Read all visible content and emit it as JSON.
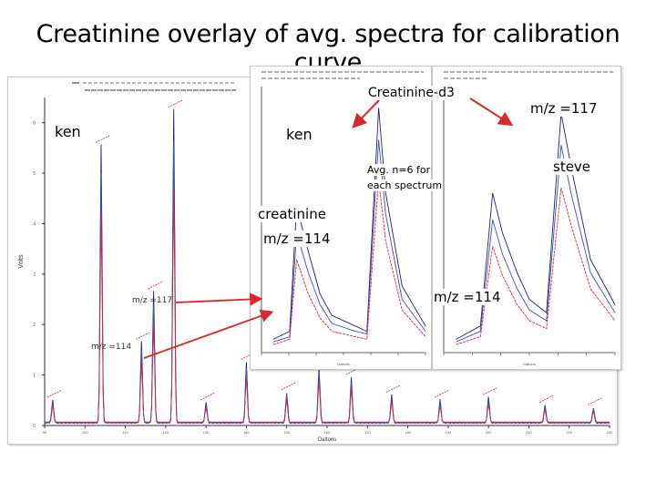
{
  "title": "Creatinine overlay of avg. spectra for calibration curve",
  "labels": {
    "creatinine_d3": "Creatinine-d3",
    "mz117_top": "m/z =117",
    "ken_left": "ken",
    "ken_right": "ken",
    "steve": "steve",
    "avg_line1": "Avg. n=6 for",
    "avg_line2": "each spectrum",
    "creatinine": "creatinine",
    "mz114_left": "m/z =114",
    "mz114_right": "m/z =114",
    "main_mz117": "m/z =117",
    "main_mz114": "m/z =114"
  },
  "colors": {
    "series_dark": "#22226a",
    "series_blue": "#3c4fb0",
    "series_red": "#c0304a",
    "arrow": "#d42a2a"
  },
  "chart_data": [
    {
      "type": "line",
      "title": "",
      "xlabel": "Daltons",
      "ylabel": "Volts",
      "xlim": [
        90,
        230
      ],
      "ylim": [
        0,
        6.5
      ],
      "x_ticks": [
        90,
        100,
        110,
        120,
        130,
        140,
        150,
        160,
        170,
        180,
        190,
        200,
        210,
        220,
        230
      ],
      "y_ticks": [
        0,
        1,
        2,
        3,
        4,
        5,
        6
      ],
      "grid": false,
      "legend_placement": "top",
      "peaks": [
        {
          "x": 92,
          "y": 0.45
        },
        {
          "x": 104,
          "y": 5.5
        },
        {
          "x": 114,
          "y": 1.6
        },
        {
          "x": 117,
          "y": 2.6
        },
        {
          "x": 122,
          "y": 6.2
        },
        {
          "x": 130,
          "y": 0.4
        },
        {
          "x": 140,
          "y": 1.2
        },
        {
          "x": 150,
          "y": 0.6
        },
        {
          "x": 158,
          "y": 1.1
        },
        {
          "x": 166,
          "y": 0.9
        },
        {
          "x": 176,
          "y": 0.55
        },
        {
          "x": 188,
          "y": 0.45
        },
        {
          "x": 200,
          "y": 0.5
        },
        {
          "x": 214,
          "y": 0.35
        },
        {
          "x": 226,
          "y": 0.3
        }
      ]
    },
    {
      "type": "line",
      "title": "",
      "xlabel": "Daltons",
      "ylabel": "",
      "xlim": [
        112,
        119
      ],
      "ylim": [
        0,
        1
      ],
      "grid": false,
      "legend_placement": "top",
      "series": [
        {
          "values": [
            [
              112.5,
              0.05
            ],
            [
              113.2,
              0.08
            ],
            [
              113.5,
              0.55
            ],
            [
              114,
              0.38
            ],
            [
              114.5,
              0.22
            ],
            [
              115,
              0.14
            ],
            [
              116,
              0.1
            ],
            [
              116.5,
              0.08
            ],
            [
              117,
              0.92
            ],
            [
              117.3,
              0.6
            ],
            [
              118,
              0.25
            ],
            [
              119,
              0.1
            ]
          ]
        },
        {
          "values": [
            [
              112.5,
              0.04
            ],
            [
              113.2,
              0.06
            ],
            [
              113.5,
              0.45
            ],
            [
              114,
              0.3
            ],
            [
              114.5,
              0.18
            ],
            [
              115,
              0.11
            ],
            [
              116,
              0.08
            ],
            [
              116.5,
              0.07
            ],
            [
              117,
              0.8
            ],
            [
              117.3,
              0.52
            ],
            [
              118,
              0.2
            ],
            [
              119,
              0.08
            ]
          ]
        },
        {
          "values": [
            [
              112.5,
              0.03
            ],
            [
              113.2,
              0.05
            ],
            [
              113.5,
              0.35
            ],
            [
              114,
              0.22
            ],
            [
              114.5,
              0.13
            ],
            [
              115,
              0.08
            ],
            [
              116,
              0.06
            ],
            [
              116.5,
              0.05
            ],
            [
              117,
              0.65
            ],
            [
              117.3,
              0.42
            ],
            [
              118,
              0.16
            ],
            [
              119,
              0.06
            ]
          ]
        }
      ]
    },
    {
      "type": "line",
      "title": "",
      "xlabel": "Daltons",
      "ylabel": "",
      "xlim": [
        112,
        119
      ],
      "ylim": [
        0,
        1
      ],
      "grid": false,
      "legend_placement": "top",
      "series": [
        {
          "values": [
            [
              112.5,
              0.05
            ],
            [
              113.5,
              0.1
            ],
            [
              114,
              0.6
            ],
            [
              114.4,
              0.45
            ],
            [
              115,
              0.3
            ],
            [
              115.5,
              0.2
            ],
            [
              116.2,
              0.15
            ],
            [
              116.8,
              0.9
            ],
            [
              117.2,
              0.7
            ],
            [
              118,
              0.35
            ],
            [
              119,
              0.18
            ]
          ]
        },
        {
          "values": [
            [
              112.5,
              0.04
            ],
            [
              113.5,
              0.08
            ],
            [
              114,
              0.5
            ],
            [
              114.4,
              0.37
            ],
            [
              115,
              0.24
            ],
            [
              115.5,
              0.16
            ],
            [
              116.2,
              0.12
            ],
            [
              116.8,
              0.78
            ],
            [
              117.2,
              0.6
            ],
            [
              118,
              0.3
            ],
            [
              119,
              0.15
            ]
          ]
        },
        {
          "values": [
            [
              112.5,
              0.03
            ],
            [
              113.5,
              0.06
            ],
            [
              114,
              0.4
            ],
            [
              114.4,
              0.29
            ],
            [
              115,
              0.18
            ],
            [
              115.5,
              0.12
            ],
            [
              116.2,
              0.09
            ],
            [
              116.8,
              0.62
            ],
            [
              117.2,
              0.48
            ],
            [
              118,
              0.24
            ],
            [
              119,
              0.12
            ]
          ]
        }
      ]
    }
  ]
}
